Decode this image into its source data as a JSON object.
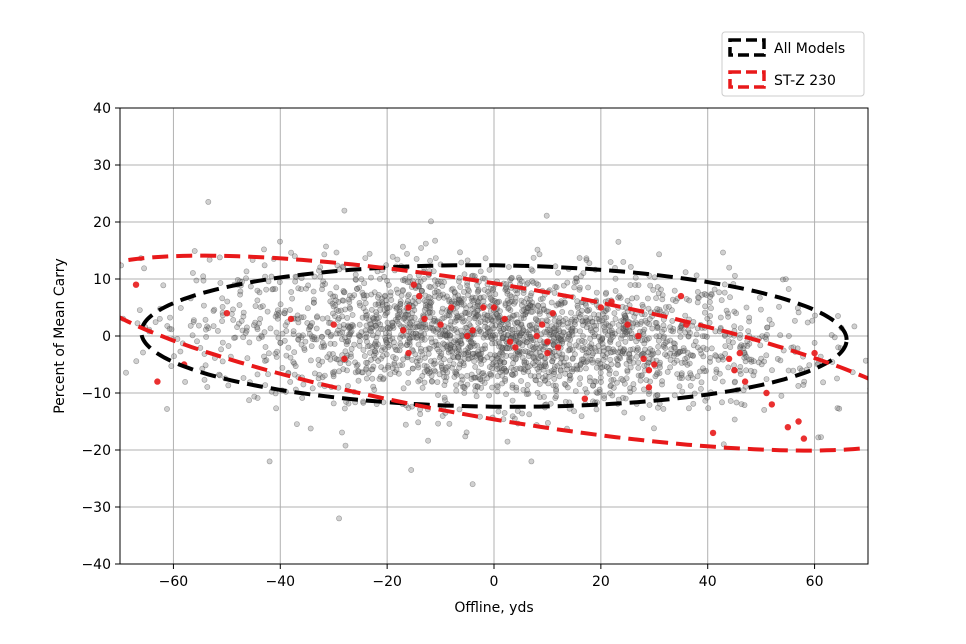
{
  "chart_data": {
    "type": "scatter",
    "title": "",
    "xlabel": "Offline, yds",
    "ylabel": "Percent of Mean Carry",
    "xlim": [
      -70,
      70
    ],
    "ylim": [
      -40,
      40
    ],
    "x_ticks": [
      -60,
      -40,
      -20,
      0,
      20,
      40,
      60
    ],
    "y_ticks": [
      -40,
      -30,
      -20,
      -10,
      0,
      10,
      20,
      30,
      40
    ],
    "x_tick_labels": [
      "−60",
      "−40",
      "−20",
      "0",
      "20",
      "40",
      "60"
    ],
    "y_tick_labels": [
      "−40",
      "−30",
      "−20",
      "−10",
      "0",
      "10",
      "20",
      "30",
      "40"
    ],
    "grid": true,
    "legend_position": "top-right, above plot",
    "series": [
      {
        "name": "All Models",
        "kind": "scatter",
        "color": "#333333",
        "point_count_approx": 2500,
        "spread": {
          "x_center": 0,
          "x_std": 27,
          "y_center": 0,
          "y_std": 6
        },
        "outliers": [
          [
            -28,
            22
          ],
          [
            -29,
            -32
          ],
          [
            -42,
            -22
          ],
          [
            -4,
            -26
          ],
          [
            7,
            -22
          ],
          [
            43,
            -19
          ]
        ]
      },
      {
        "name": "ST-Z 230",
        "kind": "scatter",
        "color": "#e8191a",
        "points": [
          [
            -67,
            9
          ],
          [
            -63,
            -8
          ],
          [
            -58,
            -5
          ],
          [
            -50,
            4
          ],
          [
            -38,
            3
          ],
          [
            -30,
            2
          ],
          [
            -28,
            -4
          ],
          [
            -16,
            5
          ],
          [
            -15,
            9
          ],
          [
            -14,
            7
          ],
          [
            -13,
            3
          ],
          [
            -17,
            1
          ],
          [
            -16,
            -3
          ],
          [
            -10,
            2
          ],
          [
            -8,
            5
          ],
          [
            -5,
            0
          ],
          [
            -4,
            1
          ],
          [
            -2,
            5
          ],
          [
            0,
            5
          ],
          [
            2,
            3
          ],
          [
            3,
            -1
          ],
          [
            4,
            -2
          ],
          [
            8,
            0
          ],
          [
            9,
            2
          ],
          [
            10,
            -1
          ],
          [
            10,
            -3
          ],
          [
            11,
            4
          ],
          [
            12,
            -2
          ],
          [
            17,
            -11
          ],
          [
            20,
            5
          ],
          [
            22,
            6
          ],
          [
            25,
            2
          ],
          [
            27,
            0
          ],
          [
            28,
            -4
          ],
          [
            29,
            -6
          ],
          [
            30,
            -5
          ],
          [
            29,
            -9
          ],
          [
            35,
            7
          ],
          [
            36,
            2
          ],
          [
            41,
            -17
          ],
          [
            44,
            -4
          ],
          [
            45,
            -6
          ],
          [
            46,
            -3
          ],
          [
            47,
            -8
          ],
          [
            51,
            -10
          ],
          [
            52,
            -12
          ],
          [
            55,
            -16
          ],
          [
            57,
            -15
          ],
          [
            58,
            -18
          ],
          [
            60,
            -3
          ]
        ]
      },
      {
        "name": "All Models",
        "kind": "ellipse",
        "color": "#000000",
        "center": [
          0,
          0
        ],
        "rx": 66,
        "ry": 12.4,
        "angle_deg": -0.6
      },
      {
        "name": "ST-Z 230",
        "kind": "ellipse",
        "color": "#e8191a",
        "center": [
          2,
          -3
        ],
        "rx": 80,
        "ry": 11.8,
        "angle_deg": -9
      }
    ],
    "legend": [
      {
        "label": "All Models",
        "color": "#000000",
        "style": "dashed"
      },
      {
        "label": "ST-Z 230",
        "color": "#e8191a",
        "style": "dashed"
      }
    ]
  }
}
